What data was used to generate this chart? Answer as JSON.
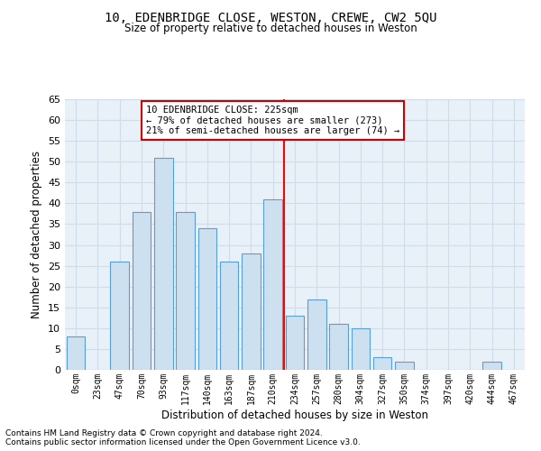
{
  "title_line1": "10, EDENBRIDGE CLOSE, WESTON, CREWE, CW2 5QU",
  "title_line2": "Size of property relative to detached houses in Weston",
  "xlabel": "Distribution of detached houses by size in Weston",
  "ylabel": "Number of detached properties",
  "footnote1": "Contains HM Land Registry data © Crown copyright and database right 2024.",
  "footnote2": "Contains public sector information licensed under the Open Government Licence v3.0.",
  "bar_labels": [
    "0sqm",
    "23sqm",
    "47sqm",
    "70sqm",
    "93sqm",
    "117sqm",
    "140sqm",
    "163sqm",
    "187sqm",
    "210sqm",
    "234sqm",
    "257sqm",
    "280sqm",
    "304sqm",
    "327sqm",
    "350sqm",
    "374sqm",
    "397sqm",
    "420sqm",
    "444sqm",
    "467sqm"
  ],
  "bar_values": [
    8,
    0,
    26,
    38,
    51,
    38,
    34,
    26,
    28,
    41,
    13,
    17,
    11,
    10,
    3,
    2,
    0,
    0,
    0,
    2,
    0
  ],
  "bar_color": "#cce0f0",
  "bar_edge_color": "#5a9fd4",
  "grid_color": "#d0dce8",
  "background_color": "#e8f0f8",
  "red_line_x": 9.5,
  "annotation_text": "10 EDENBRIDGE CLOSE: 225sqm\n← 79% of detached houses are smaller (273)\n21% of semi-detached houses are larger (74) →",
  "annotation_box_color": "#ffffff",
  "annotation_box_edge": "#cc0000",
  "ylim": [
    0,
    65
  ],
  "yticks": [
    0,
    5,
    10,
    15,
    20,
    25,
    30,
    35,
    40,
    45,
    50,
    55,
    60,
    65
  ]
}
